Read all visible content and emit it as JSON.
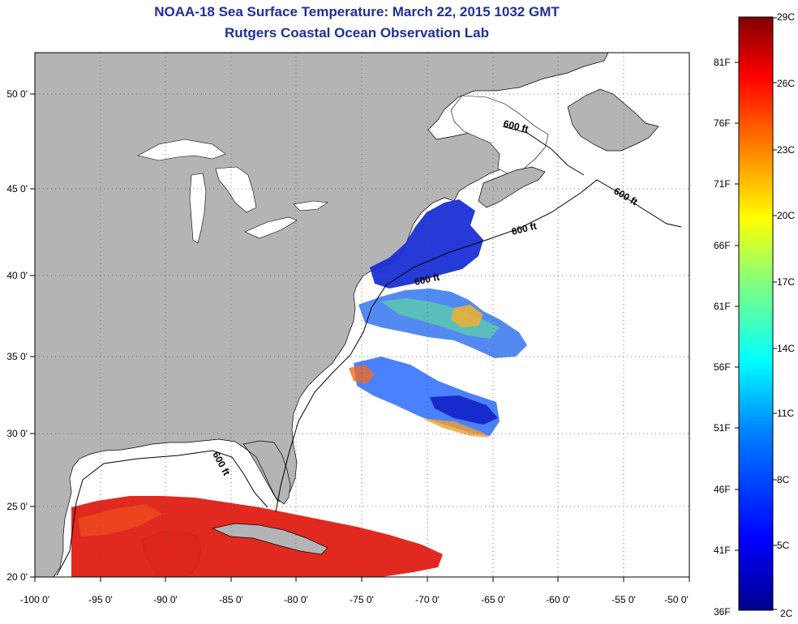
{
  "title": "NOAA-18 Sea Surface Temperature:  March 22, 2015 1032 GMT",
  "subtitle": "Rutgers Coastal Ocean Observation Lab",
  "map": {
    "lon_ticks": [
      "-100 0'",
      "-95 0'",
      "-90 0'",
      "-85 0'",
      "-80 0'",
      "-75 0'",
      "-70 0'",
      "-65 0'",
      "-60 0'",
      "-55 0'",
      "-50 0'"
    ],
    "lat_ticks": [
      "50 0'",
      "45 0'",
      "40 0'",
      "35 0'",
      "30 0'",
      "25 0'",
      "20 0'"
    ],
    "isobath_labels": [
      "600 ft",
      "600 ft",
      "600 ft",
      "600 ft",
      "600 ft"
    ],
    "land_color": "#b4b4b4",
    "ocean_color": "#ffffff"
  },
  "colorbar": {
    "celsius": [
      "29C",
      "26C",
      "23C",
      "20C",
      "17C",
      "14C",
      "11C",
      "8C",
      "5C",
      "2C"
    ],
    "fahrenheit": [
      "81F",
      "76F",
      "71F",
      "66F",
      "61F",
      "56F",
      "51F",
      "46F",
      "41F",
      "36F"
    ],
    "colors": [
      "#800000",
      "#ff0000",
      "#ff8000",
      "#ffff00",
      "#80ff80",
      "#00ffff",
      "#0080ff",
      "#0000ff",
      "#000080"
    ]
  }
}
